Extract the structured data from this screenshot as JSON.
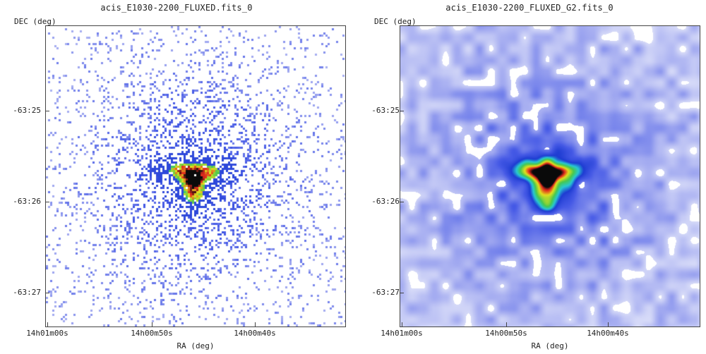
{
  "panels": [
    {
      "title": "acis_E1030-2200_FLUXED.fits_0",
      "ylabel": "DEC (deg)",
      "xlabel": "RA (deg)",
      "yticks": [
        "-63:25",
        "-63:26",
        "-63:27"
      ],
      "xticks": [
        "14h01m00s",
        "14h00m50s",
        "14h00m40s"
      ],
      "render": "counts"
    },
    {
      "title": "acis_E1030-2200_FLUXED_G2.fits_0",
      "ylabel": "DEC (deg)",
      "xlabel": "RA (deg)",
      "yticks": [
        "-63:25",
        "-63:26",
        "-63:27"
      ],
      "xticks": [
        "14h01m00s",
        "14h00m50s",
        "14h00m40s"
      ],
      "render": "smoothed"
    }
  ],
  "colors": {
    "faint": "#c9cdf6",
    "mid": "#4a5be6",
    "bright_cyan": "#2fd0c8",
    "green": "#4cc34a",
    "yellow": "#e8e020",
    "red": "#e02020",
    "core": "#111111"
  }
}
